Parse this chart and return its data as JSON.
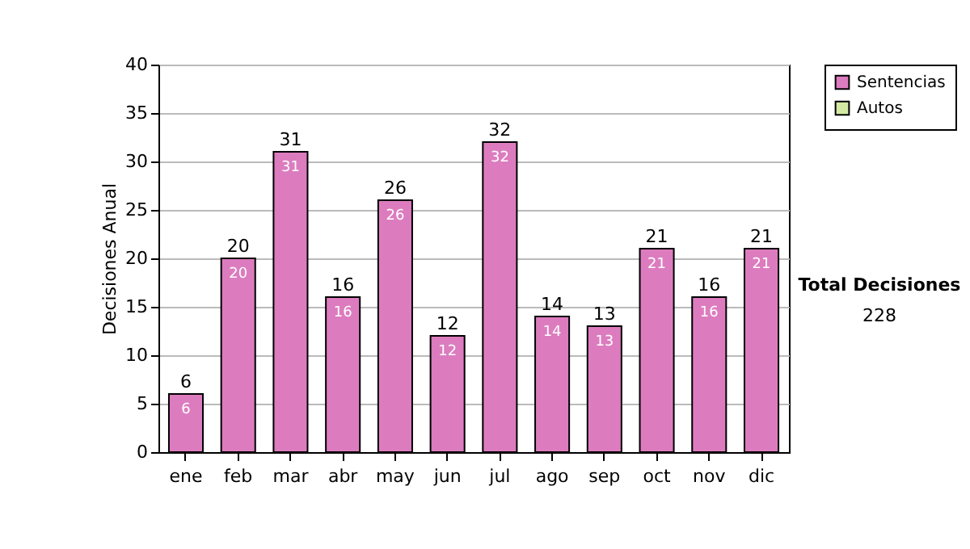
{
  "chart_data": {
    "type": "bar",
    "ylabel": "Decisiones Anual",
    "categories": [
      "ene",
      "feb",
      "mar",
      "abr",
      "may",
      "jun",
      "jul",
      "ago",
      "sep",
      "oct",
      "nov",
      "dic"
    ],
    "series": [
      {
        "name": "Sentencias",
        "color": "#dc7cbf",
        "values": [
          6,
          20,
          31,
          16,
          26,
          12,
          32,
          14,
          13,
          21,
          16,
          21
        ]
      },
      {
        "name": "Autos",
        "color": "#d4e9a4",
        "values": [
          null,
          null,
          null,
          null,
          null,
          null,
          null,
          null,
          null,
          null,
          null,
          null
        ]
      }
    ],
    "data_labels": true,
    "totals": [
      "6",
      "20",
      "31",
      "16",
      "26",
      "12",
      "32",
      "14",
      "13",
      "21",
      "16",
      "21"
    ],
    "ylim": [
      0,
      40
    ],
    "yticks": [
      0,
      5,
      10,
      15,
      20,
      25,
      30,
      35,
      40
    ],
    "grid": "y",
    "legend": "right",
    "annotations": [
      "Total Decisiones",
      "228"
    ]
  }
}
